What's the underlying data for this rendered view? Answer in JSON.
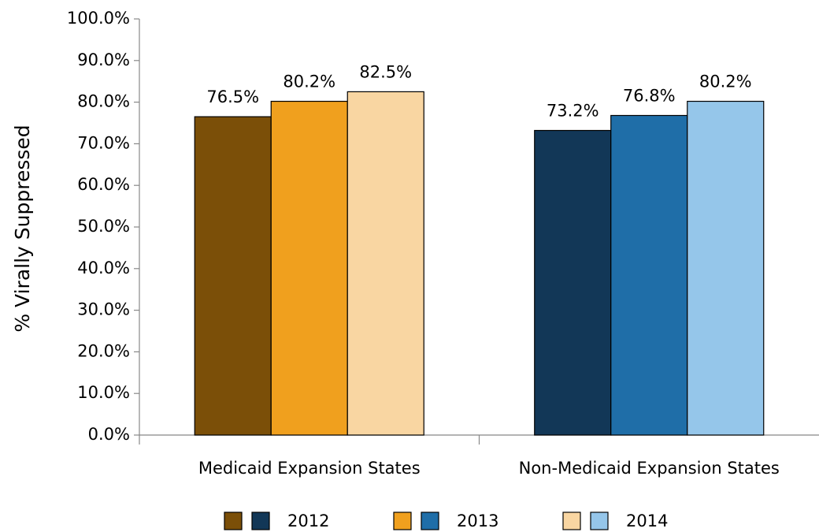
{
  "chart_data": {
    "type": "bar",
    "y_label": "% Virally Suppressed",
    "categories": [
      "Medicaid Expansion States",
      "Non-Medicaid Expansion States"
    ],
    "series": [
      {
        "name": "2012",
        "colors": [
          "#7b4f08",
          "#123757"
        ],
        "values": [
          76.5,
          73.2
        ],
        "value_labels": [
          "76.5%",
          "73.2%"
        ]
      },
      {
        "name": "2013",
        "colors": [
          "#f0a01e",
          "#1f6ea8"
        ],
        "values": [
          80.2,
          76.8
        ],
        "value_labels": [
          "80.2%",
          "76.8%"
        ]
      },
      {
        "name": "2014",
        "colors": [
          "#f9d6a2",
          "#95c6ea"
        ],
        "values": [
          82.5,
          80.2
        ],
        "value_labels": [
          "82.5%",
          "80.2%"
        ]
      }
    ],
    "ylim": [
      0,
      100
    ],
    "yticks": [
      {
        "value": 0,
        "label": "0.0%"
      },
      {
        "value": 10,
        "label": "10.0%"
      },
      {
        "value": 20,
        "label": "20.0%"
      },
      {
        "value": 30,
        "label": "30.0%"
      },
      {
        "value": 40,
        "label": "40.0%"
      },
      {
        "value": 50,
        "label": "50.0%"
      },
      {
        "value": 60,
        "label": "60.0%"
      },
      {
        "value": 70,
        "label": "70.0%"
      },
      {
        "value": 80,
        "label": "80.0%"
      },
      {
        "value": 90,
        "label": "90.0%"
      },
      {
        "value": 100,
        "label": "100.0%"
      }
    ],
    "grid": false,
    "legend": "bottom"
  }
}
